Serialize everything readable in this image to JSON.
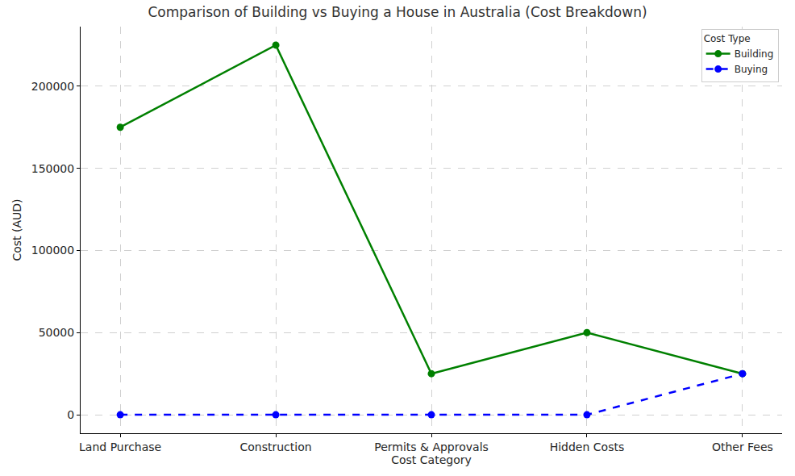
{
  "chart_data": {
    "type": "line",
    "title": "Comparison of Building vs Buying a House in Australia (Cost Breakdown)",
    "x_label": "Cost Category",
    "y_label": "Cost (AUD)",
    "categories": [
      "Land Purchase",
      "Construction",
      "Permits & Approvals",
      "Hidden Costs",
      "Other Fees"
    ],
    "series": [
      {
        "name": "Building",
        "color": "#008000",
        "marker": "circle",
        "line_style": "solid",
        "values": [
          175000,
          225000,
          25000,
          50000,
          25000
        ]
      },
      {
        "name": "Buying",
        "color": "#0000ff",
        "marker": "circle",
        "line_style": "dash",
        "values": [
          0,
          0,
          0,
          0,
          25000
        ]
      }
    ],
    "ylim": [
      -11250,
      236250
    ],
    "yticks": [
      0,
      50000,
      100000,
      150000,
      200000
    ],
    "grid": true,
    "legend": "upper right",
    "legend_title": "Cost Type"
  }
}
